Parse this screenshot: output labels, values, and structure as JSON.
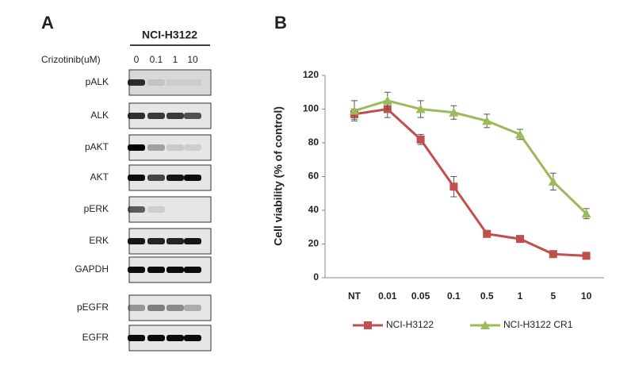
{
  "blot": {
    "panel_label": "A",
    "title": "NCI-H3122",
    "treatment": "Crizotinib(uM)",
    "lanes": [
      "0",
      "0.1",
      "1",
      "10"
    ],
    "rows": [
      "pALK",
      "ALK",
      "pAKT",
      "AKT",
      "pERK",
      "ERK",
      "GAPDH",
      "pEGFR",
      "EGFR"
    ]
  },
  "chart_data": {
    "type": "line",
    "panel_label": "B",
    "ylabel": "Cell viability (% of control)",
    "categories": [
      "NT",
      "0.01",
      "0.05",
      "0.1",
      "0.5",
      "1",
      "5",
      "10"
    ],
    "series": [
      {
        "name": "NCI-H3122",
        "color": "#c0504d",
        "marker": "square",
        "values": [
          97,
          100,
          82,
          54,
          26,
          23,
          14,
          13
        ],
        "errors": [
          3,
          5,
          3,
          6,
          1,
          1,
          1,
          1
        ]
      },
      {
        "name": "NCI-H3122 CR1",
        "color": "#9bbb59",
        "marker": "triangle",
        "values": [
          99,
          105,
          100,
          98,
          93,
          85,
          57,
          38
        ],
        "errors": [
          6,
          5,
          5,
          4,
          4,
          3,
          5,
          3
        ]
      }
    ],
    "ylim": [
      0,
      120
    ],
    "yticks": [
      0,
      20,
      40,
      60,
      80,
      100,
      120
    ],
    "grid": false
  }
}
